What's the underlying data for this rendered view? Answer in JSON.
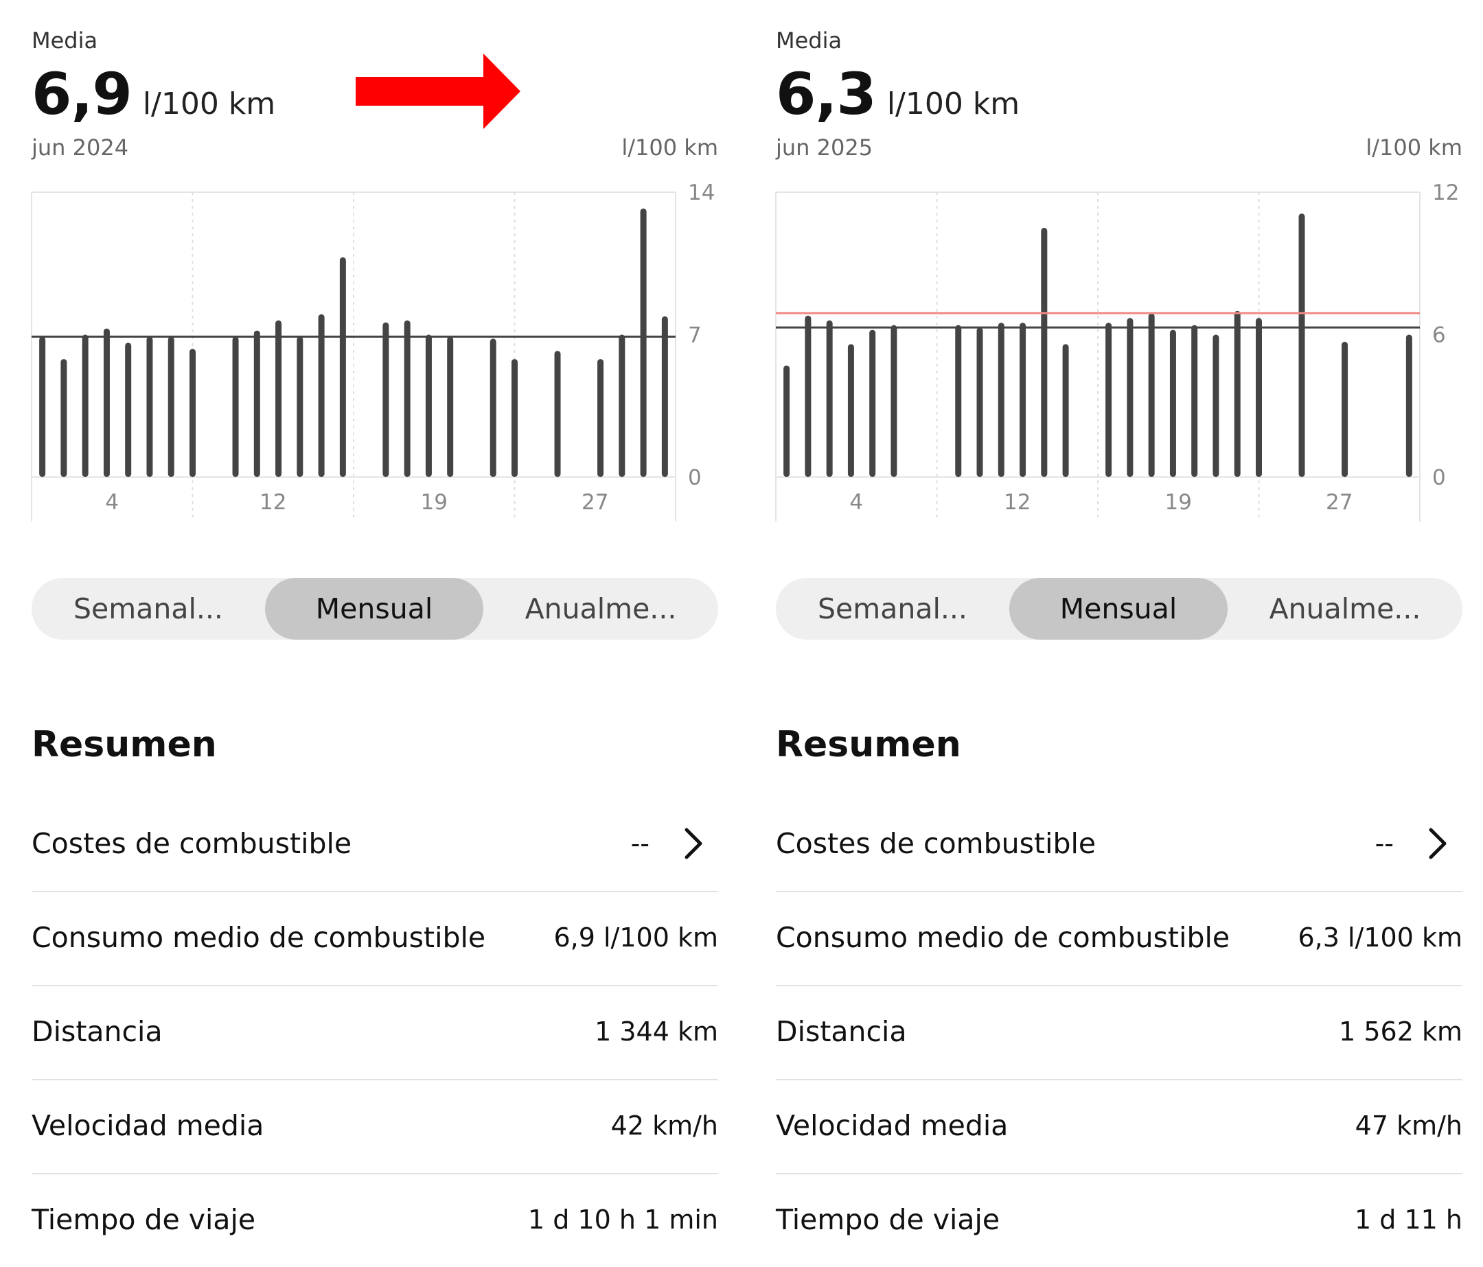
{
  "left": {
    "eyebrow": "Media",
    "average_value": "6,9",
    "average_unit": "l/100 km",
    "period": "jun 2024",
    "y_unit": "l/100 km",
    "segmented": [
      "Semanal...",
      "Mensual",
      "Anualme..."
    ],
    "selected_segment": "Mensual",
    "summary_title": "Resumen",
    "rows": [
      {
        "label": "Costes de combustible",
        "value": "--"
      },
      {
        "label": "Consumo medio de combustible",
        "value": "6,9 l/100 km"
      },
      {
        "label": "Distancia",
        "value": "1 344 km"
      },
      {
        "label": "Velocidad media",
        "value": "42 km/h"
      },
      {
        "label": "Tiempo de viaje",
        "value": "1 d 10 h 1 min"
      }
    ]
  },
  "right": {
    "eyebrow": "Media",
    "average_value": "6,3",
    "average_unit": "l/100 km",
    "period": "jun 2025",
    "y_unit": "l/100 km",
    "segmented": [
      "Semanal...",
      "Mensual",
      "Anualme..."
    ],
    "selected_segment": "Mensual",
    "summary_title": "Resumen",
    "rows": [
      {
        "label": "Costes de combustible",
        "value": "--"
      },
      {
        "label": "Consumo medio de combustible",
        "value": "6,3 l/100 km"
      },
      {
        "label": "Distancia",
        "value": "1 562 km"
      },
      {
        "label": "Velocidad media",
        "value": "47 km/h"
      },
      {
        "label": "Tiempo de viaje",
        "value": "1 d 11 h"
      }
    ]
  },
  "colors": {
    "bar": "#444444",
    "average_line": "#444444",
    "reference_line": "#f08a84",
    "arrow": "#ff0000",
    "selected_segment_bg": "#c6c6c6",
    "segment_bg": "#efefef"
  },
  "icons": {
    "arrow": "arrow-right-icon",
    "chevron": "chevron-right-icon"
  },
  "chart_data": [
    {
      "type": "bar",
      "x": [
        1,
        2,
        3,
        4,
        5,
        6,
        7,
        8,
        10,
        11,
        12,
        13,
        14,
        15,
        17,
        18,
        19,
        20,
        22,
        23,
        25,
        27,
        28,
        29,
        30
      ],
      "values": [
        6.9,
        5.8,
        7.0,
        7.3,
        6.6,
        6.9,
        6.9,
        6.3,
        6.9,
        7.2,
        7.7,
        6.9,
        8.0,
        10.8,
        7.6,
        7.7,
        7.0,
        6.9,
        6.8,
        5.8,
        6.2,
        5.8,
        7.0,
        13.2,
        7.9
      ],
      "average": 6.9,
      "x_ticks": [
        "4",
        "12",
        "19",
        "27"
      ],
      "x_tick_values": [
        4,
        12,
        19,
        27
      ],
      "y_ticks": [
        "14",
        "7",
        "0"
      ],
      "y_tick_values": [
        14,
        7,
        0
      ],
      "ylim": [
        0,
        14
      ],
      "xlim": [
        0.5,
        30.5
      ],
      "y_axis": "right",
      "grid": true
    },
    {
      "type": "bar",
      "x": [
        1,
        2,
        3,
        4,
        5,
        6,
        9,
        10,
        11,
        12,
        13,
        14,
        16,
        17,
        18,
        19,
        20,
        21,
        22,
        23,
        25,
        27,
        30
      ],
      "values": [
        4.7,
        6.8,
        6.6,
        5.6,
        6.2,
        6.4,
        6.4,
        6.3,
        6.5,
        6.5,
        10.5,
        5.6,
        6.5,
        6.7,
        6.9,
        6.2,
        6.4,
        6.0,
        7.0,
        6.7,
        11.1,
        5.7,
        6.0
      ],
      "average": 6.3,
      "reference": 6.9,
      "x_ticks": [
        "4",
        "12",
        "19",
        "27"
      ],
      "x_tick_values": [
        4,
        12,
        19,
        27
      ],
      "y_ticks": [
        "12",
        "6",
        "0"
      ],
      "y_tick_values": [
        12,
        6,
        0
      ],
      "ylim": [
        0,
        12
      ],
      "xlim": [
        0.5,
        30.5
      ],
      "y_axis": "right",
      "grid": true
    }
  ]
}
